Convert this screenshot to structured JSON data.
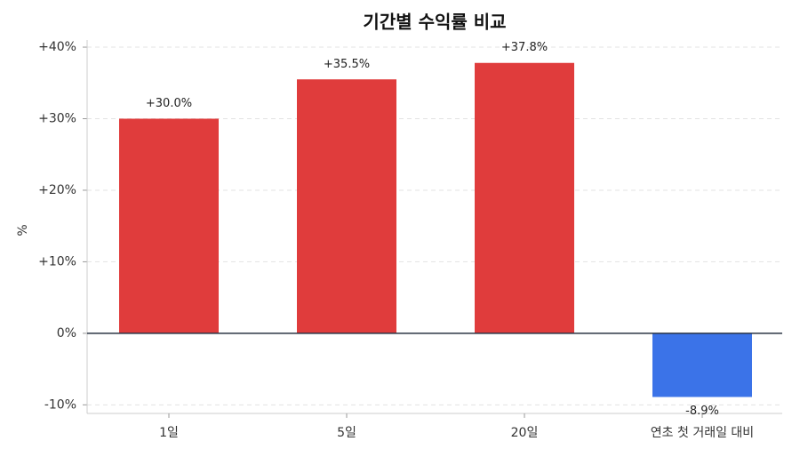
{
  "chart_data": {
    "type": "bar",
    "title": "기간별 수익률 비교",
    "y_label": "%",
    "categories": [
      "1일",
      "5일",
      "20일",
      "연초 첫 거래일 대비"
    ],
    "values": [
      30.0,
      35.5,
      37.8,
      -8.9
    ],
    "value_labels": [
      "+30.0%",
      "+35.5%",
      "+37.8%",
      "-8.9%"
    ],
    "colors": [
      "#e03c3c",
      "#e03c3c",
      "#e03c3c",
      "#3b73e8"
    ],
    "ylim": [
      -11.2,
      41.0
    ],
    "yticks": [
      {
        "value": -10,
        "label": "-10%"
      },
      {
        "value": 0,
        "label": "0%"
      },
      {
        "value": 10,
        "label": "+10%"
      },
      {
        "value": 20,
        "label": "+20%"
      },
      {
        "value": 30,
        "label": "+30%"
      },
      {
        "value": 40,
        "label": "+40%"
      }
    ],
    "grid": true
  }
}
